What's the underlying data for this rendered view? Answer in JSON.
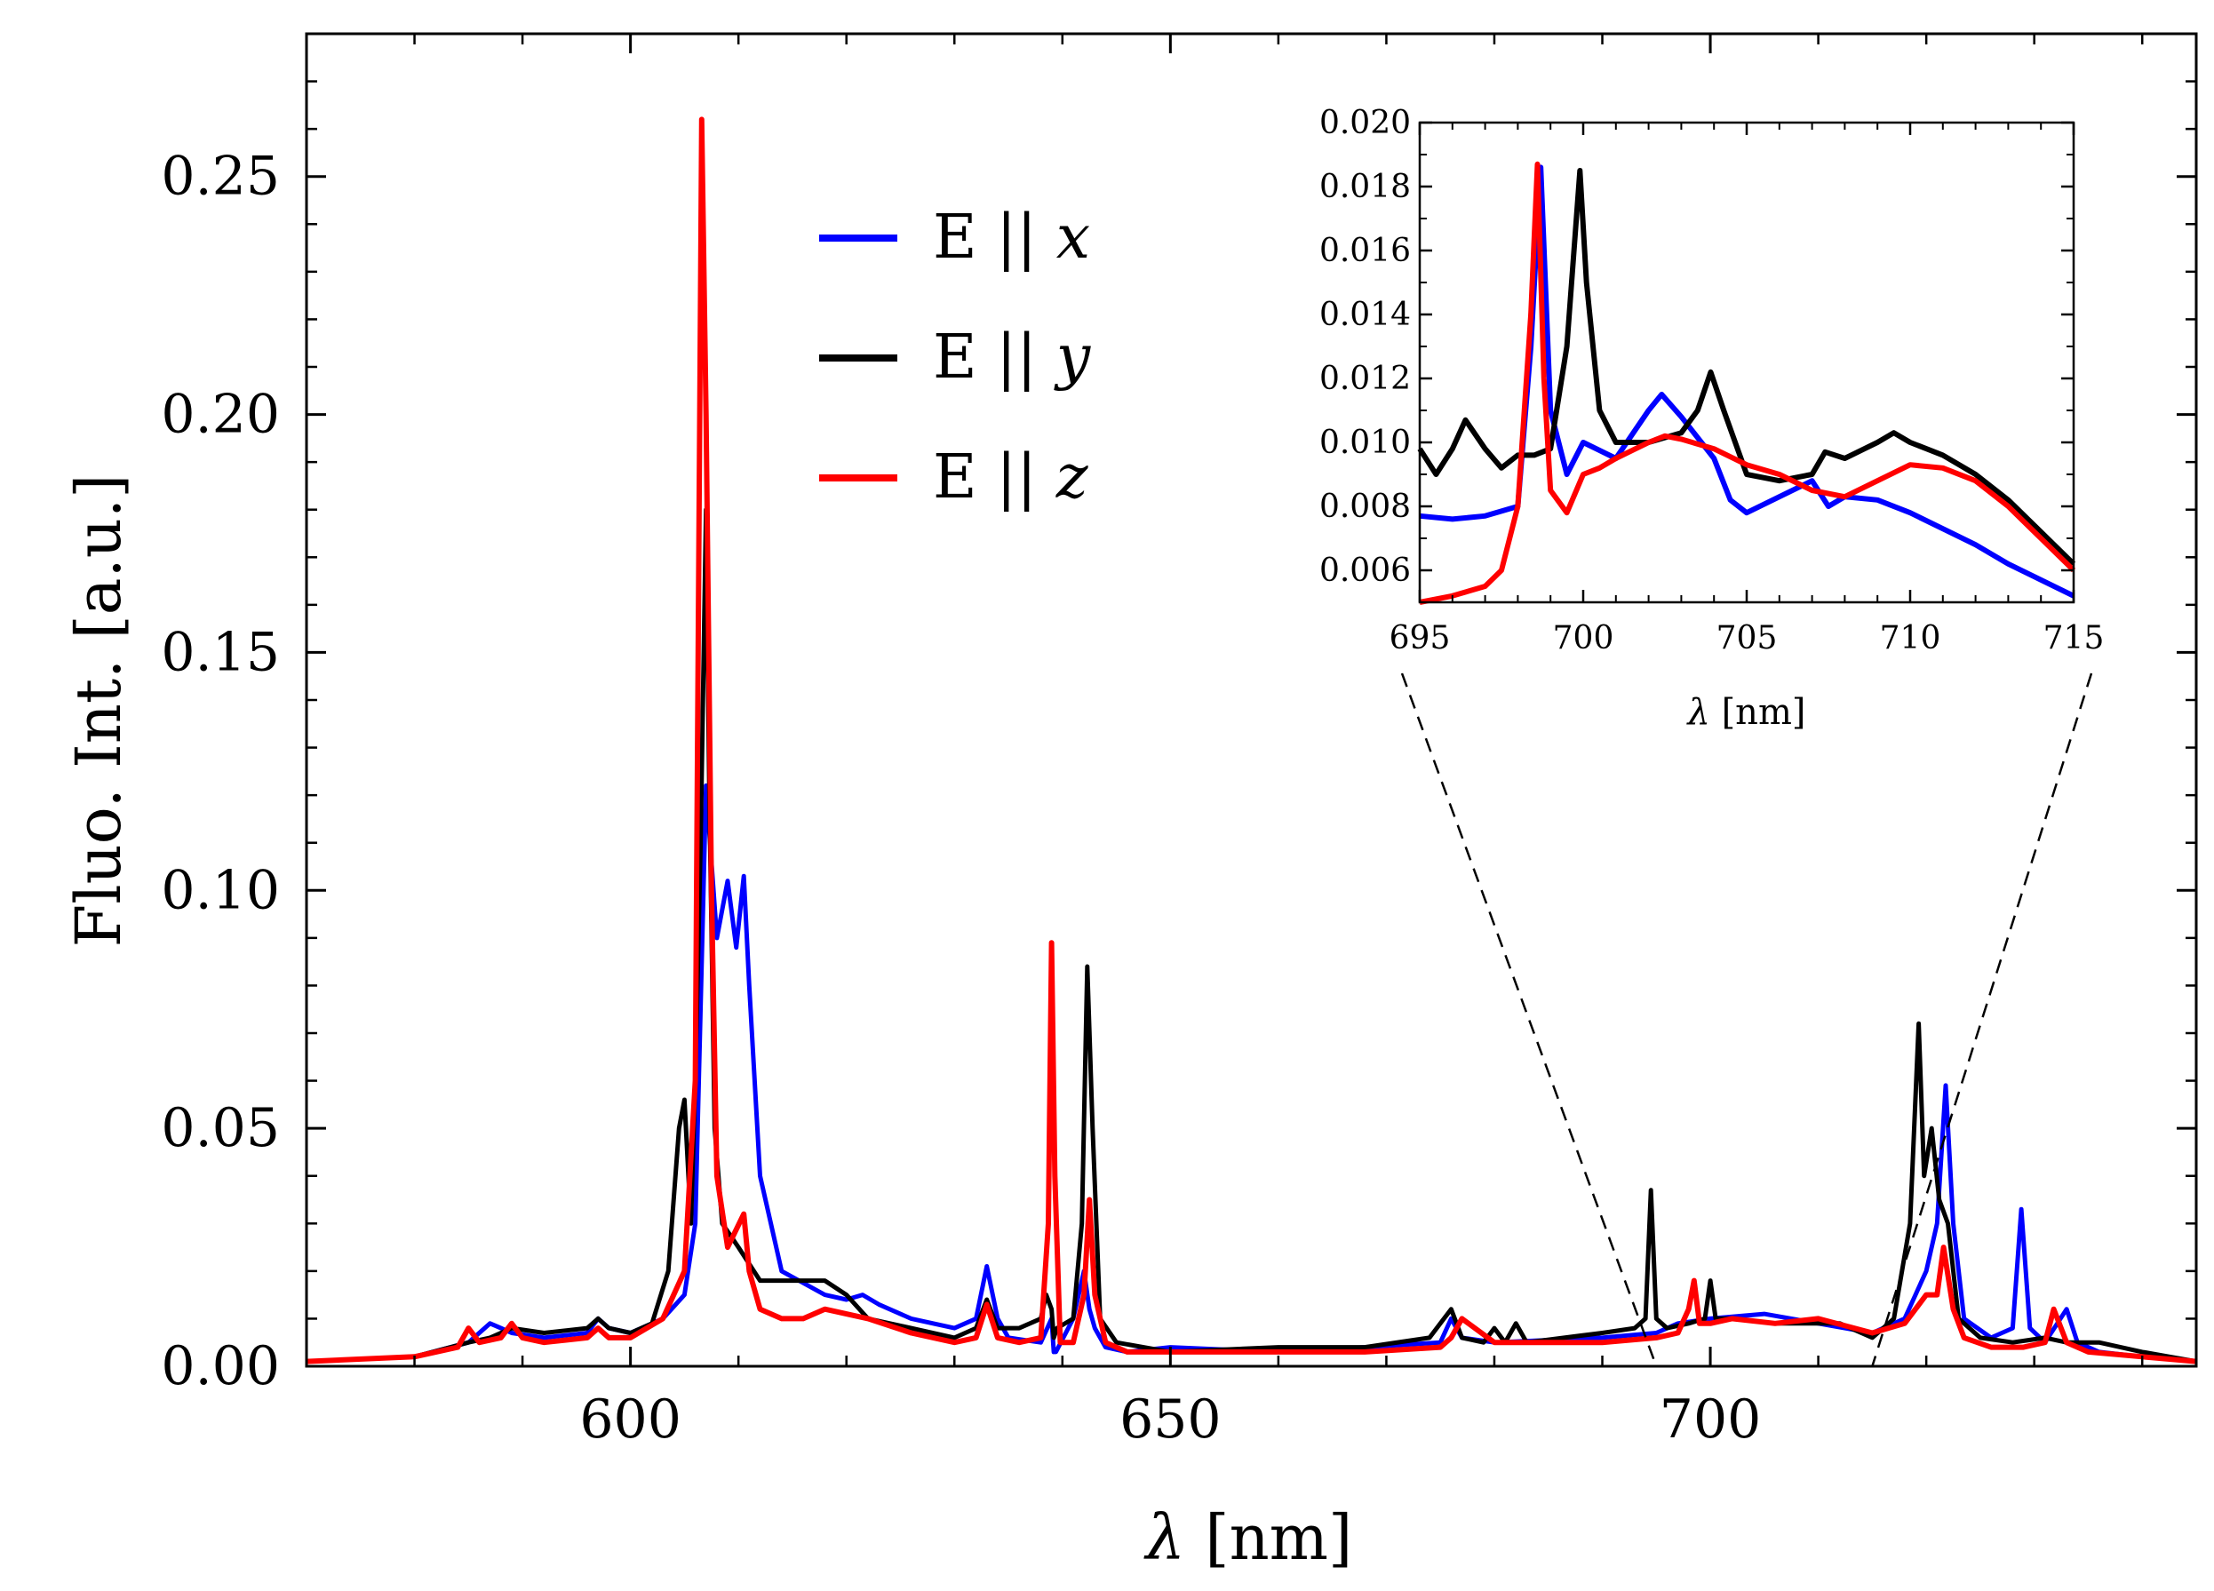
{
  "chart_data": [
    {
      "type": "line",
      "xlabel_symbol": "λ",
      "xlabel_unit": "[nm]",
      "ylabel": "Fluo. Int. [a.u.]",
      "xlim": [
        570,
        745
      ],
      "ylim": [
        0,
        0.28
      ],
      "xticks": [
        600,
        650,
        700
      ],
      "xtick_labels": [
        "600",
        "650",
        "700"
      ],
      "yticks": [
        0,
        0.05,
        0.1,
        0.15,
        0.2,
        0.25
      ],
      "ytick_labels": [
        "0.00",
        "0.05",
        "0.10",
        "0.15",
        "0.20",
        "0.25"
      ],
      "legend": {
        "placement": "top-center",
        "entries": [
          {
            "prefix": "E ||",
            "var": "x",
            "color": "#0000ff"
          },
          {
            "prefix": "E ||",
            "var": "y",
            "color": "#000000"
          },
          {
            "prefix": "E ||",
            "var": "z",
            "color": "#ff0000"
          }
        ]
      },
      "series": [
        {
          "name": "E || x",
          "color": "#0000ff",
          "x": [
            570,
            580,
            585,
            587,
            588,
            589,
            592,
            596,
            597,
            598,
            600,
            603,
            605,
            606,
            607,
            608,
            609,
            609.8,
            610.5,
            611,
            612,
            614,
            618,
            620,
            621.5,
            623,
            626,
            630,
            632,
            633,
            634,
            635,
            638,
            639,
            639.2,
            639.4,
            641,
            642,
            642.5,
            643,
            644,
            646,
            650,
            660,
            668,
            675,
            676,
            677,
            680,
            690,
            695,
            697,
            700,
            705,
            710,
            715,
            718,
            719,
            720,
            721,
            721.8,
            722.5,
            723.5,
            726,
            728,
            728.8,
            729.6,
            731,
            733,
            734,
            736,
            740,
            745
          ],
          "values": [
            0.001,
            0.002,
            0.005,
            0.009,
            0.008,
            0.007,
            0.006,
            0.007,
            0.01,
            0.008,
            0.007,
            0.01,
            0.015,
            0.03,
            0.122,
            0.09,
            0.102,
            0.088,
            0.103,
            0.08,
            0.04,
            0.02,
            0.015,
            0.014,
            0.015,
            0.013,
            0.01,
            0.008,
            0.01,
            0.021,
            0.01,
            0.006,
            0.005,
            0.01,
            0.003,
            0.003,
            0.01,
            0.02,
            0.012,
            0.008,
            0.004,
            0.003,
            0.004,
            0.003,
            0.004,
            0.005,
            0.01,
            0.006,
            0.005,
            0.006,
            0.007,
            0.009,
            0.01,
            0.011,
            0.009,
            0.007,
            0.01,
            0.015,
            0.02,
            0.03,
            0.059,
            0.03,
            0.01,
            0.006,
            0.008,
            0.033,
            0.008,
            0.005,
            0.012,
            0.005,
            0.003,
            0.002,
            0.001
          ]
        },
        {
          "name": "E || y",
          "color": "#000000",
          "x": [
            570,
            580,
            585,
            587,
            589,
            592,
            596,
            597,
            598,
            600,
            602,
            603.5,
            604.5,
            605,
            605.6,
            606,
            606.5,
            607,
            607.3,
            607.8,
            608.5,
            610,
            612,
            614,
            618,
            620,
            622,
            626,
            630,
            632,
            633,
            634,
            636,
            638,
            638.5,
            639,
            639.2,
            639.5,
            641,
            641.8,
            642.3,
            642.8,
            643.5,
            645,
            650,
            660,
            668,
            674,
            675,
            676,
            677,
            679,
            680,
            681,
            682,
            683,
            690,
            693,
            694,
            694.5,
            695,
            696,
            698,
            699.5,
            700,
            700.5,
            702,
            706,
            712,
            715,
            717,
            718.5,
            719.3,
            719.8,
            720.5,
            721.2,
            722,
            723,
            725,
            728,
            731,
            733,
            736,
            740,
            745
          ],
          "values": [
            0.001,
            0.002,
            0.005,
            0.006,
            0.008,
            0.007,
            0.008,
            0.01,
            0.008,
            0.007,
            0.009,
            0.02,
            0.05,
            0.056,
            0.03,
            0.06,
            0.11,
            0.18,
            0.12,
            0.05,
            0.03,
            0.025,
            0.018,
            0.018,
            0.018,
            0.015,
            0.01,
            0.008,
            0.006,
            0.008,
            0.014,
            0.008,
            0.008,
            0.01,
            0.015,
            0.012,
            0.006,
            0.008,
            0.01,
            0.03,
            0.084,
            0.05,
            0.01,
            0.005,
            0.003,
            0.004,
            0.004,
            0.006,
            0.009,
            0.012,
            0.006,
            0.005,
            0.008,
            0.005,
            0.009,
            0.005,
            0.007,
            0.008,
            0.01,
            0.037,
            0.01,
            0.008,
            0.009,
            0.01,
            0.018,
            0.01,
            0.01,
            0.009,
            0.009,
            0.006,
            0.01,
            0.03,
            0.072,
            0.04,
            0.05,
            0.035,
            0.03,
            0.01,
            0.006,
            0.005,
            0.006,
            0.005,
            0.005,
            0.003,
            0.001
          ]
        },
        {
          "name": "E || z",
          "color": "#ff0000",
          "x": [
            570,
            580,
            584,
            585,
            586,
            588,
            589,
            590,
            592,
            596,
            597,
            598,
            600,
            603,
            605,
            606,
            606.6,
            607,
            607.5,
            608,
            609,
            610.5,
            611,
            612,
            614,
            616,
            618,
            622,
            626,
            630,
            632,
            633,
            634,
            636,
            638,
            638.7,
            639,
            639.3,
            639.8,
            641,
            642,
            642.5,
            643,
            644,
            646,
            650,
            660,
            668,
            675,
            676,
            677,
            680,
            690,
            695,
            697,
            698,
            698.5,
            699,
            700,
            702,
            706,
            710,
            715,
            718,
            719,
            720,
            721,
            721.6,
            722.5,
            723.5,
            726,
            729,
            731,
            731.8,
            733,
            735,
            740,
            745
          ],
          "values": [
            0.001,
            0.002,
            0.004,
            0.008,
            0.005,
            0.006,
            0.009,
            0.006,
            0.005,
            0.006,
            0.008,
            0.006,
            0.006,
            0.01,
            0.02,
            0.06,
            0.262,
            0.2,
            0.1,
            0.04,
            0.025,
            0.032,
            0.02,
            0.012,
            0.01,
            0.01,
            0.012,
            0.01,
            0.007,
            0.005,
            0.006,
            0.013,
            0.006,
            0.005,
            0.006,
            0.03,
            0.089,
            0.04,
            0.005,
            0.005,
            0.015,
            0.035,
            0.015,
            0.005,
            0.003,
            0.003,
            0.003,
            0.003,
            0.004,
            0.006,
            0.01,
            0.005,
            0.005,
            0.006,
            0.007,
            0.012,
            0.018,
            0.009,
            0.009,
            0.01,
            0.009,
            0.01,
            0.007,
            0.009,
            0.012,
            0.015,
            0.015,
            0.025,
            0.012,
            0.006,
            0.004,
            0.004,
            0.005,
            0.012,
            0.005,
            0.003,
            0.002,
            0.001
          ]
        }
      ],
      "zoom_region": {
        "x_from": 695,
        "x_to": 715
      }
    },
    {
      "type": "line",
      "placement": "inset-top-right",
      "xlabel_symbol": "λ",
      "xlabel_unit": "[nm]",
      "xlim": [
        695,
        715
      ],
      "ylim": [
        0.005,
        0.02
      ],
      "xticks": [
        695,
        700,
        705,
        710,
        715
      ],
      "xtick_labels": [
        "695",
        "700",
        "705",
        "710",
        "715"
      ],
      "yticks": [
        0.006,
        0.008,
        0.01,
        0.012,
        0.014,
        0.016,
        0.018,
        0.02
      ],
      "ytick_labels": [
        "0.006",
        "0.008",
        "0.010",
        "0.012",
        "0.014",
        "0.016",
        "0.018",
        "0.020"
      ],
      "series": [
        {
          "name": "E || x",
          "color": "#0000ff",
          "x": [
            695,
            696,
            697,
            698,
            698.4,
            698.7,
            699,
            699.5,
            700,
            701,
            702,
            702.4,
            703,
            704,
            704.5,
            705,
            706,
            707,
            707.5,
            708,
            709,
            710,
            711,
            712,
            713,
            714,
            715
          ],
          "values": [
            0.0077,
            0.0076,
            0.0077,
            0.008,
            0.013,
            0.0186,
            0.011,
            0.009,
            0.01,
            0.0095,
            0.011,
            0.0115,
            0.0108,
            0.0095,
            0.0082,
            0.0078,
            0.0083,
            0.0088,
            0.008,
            0.0083,
            0.0082,
            0.0078,
            0.0073,
            0.0068,
            0.0062,
            0.0057,
            0.0052
          ]
        },
        {
          "name": "E || y",
          "color": "#000000",
          "x": [
            695,
            695.5,
            696,
            696.4,
            697,
            697.5,
            698,
            698.5,
            699,
            699.5,
            699.9,
            700.1,
            700.5,
            701,
            702,
            703,
            703.5,
            703.9,
            704.3,
            705,
            706,
            707,
            707.4,
            708,
            709,
            709.5,
            710,
            711,
            712,
            713,
            714,
            715
          ],
          "values": [
            0.0098,
            0.009,
            0.0098,
            0.0107,
            0.0098,
            0.0092,
            0.0096,
            0.0096,
            0.0098,
            0.013,
            0.0185,
            0.015,
            0.011,
            0.01,
            0.01,
            0.0103,
            0.011,
            0.0122,
            0.011,
            0.009,
            0.0088,
            0.009,
            0.0097,
            0.0095,
            0.01,
            0.0103,
            0.01,
            0.0096,
            0.009,
            0.0082,
            0.0072,
            0.0062
          ]
        },
        {
          "name": "E || z",
          "color": "#ff0000",
          "x": [
            695,
            696,
            697,
            697.5,
            698,
            698.4,
            698.6,
            698.8,
            699,
            699.5,
            700,
            700.5,
            701,
            702,
            702.5,
            703,
            704,
            705,
            706,
            707,
            708,
            709,
            710,
            711,
            712,
            713,
            714,
            715
          ],
          "values": [
            0.005,
            0.0052,
            0.0055,
            0.006,
            0.008,
            0.014,
            0.0187,
            0.012,
            0.0085,
            0.0078,
            0.009,
            0.0092,
            0.0095,
            0.01,
            0.0102,
            0.0101,
            0.0098,
            0.0093,
            0.009,
            0.0085,
            0.0083,
            0.0088,
            0.0093,
            0.0092,
            0.0088,
            0.008,
            0.007,
            0.006
          ]
        }
      ]
    }
  ]
}
